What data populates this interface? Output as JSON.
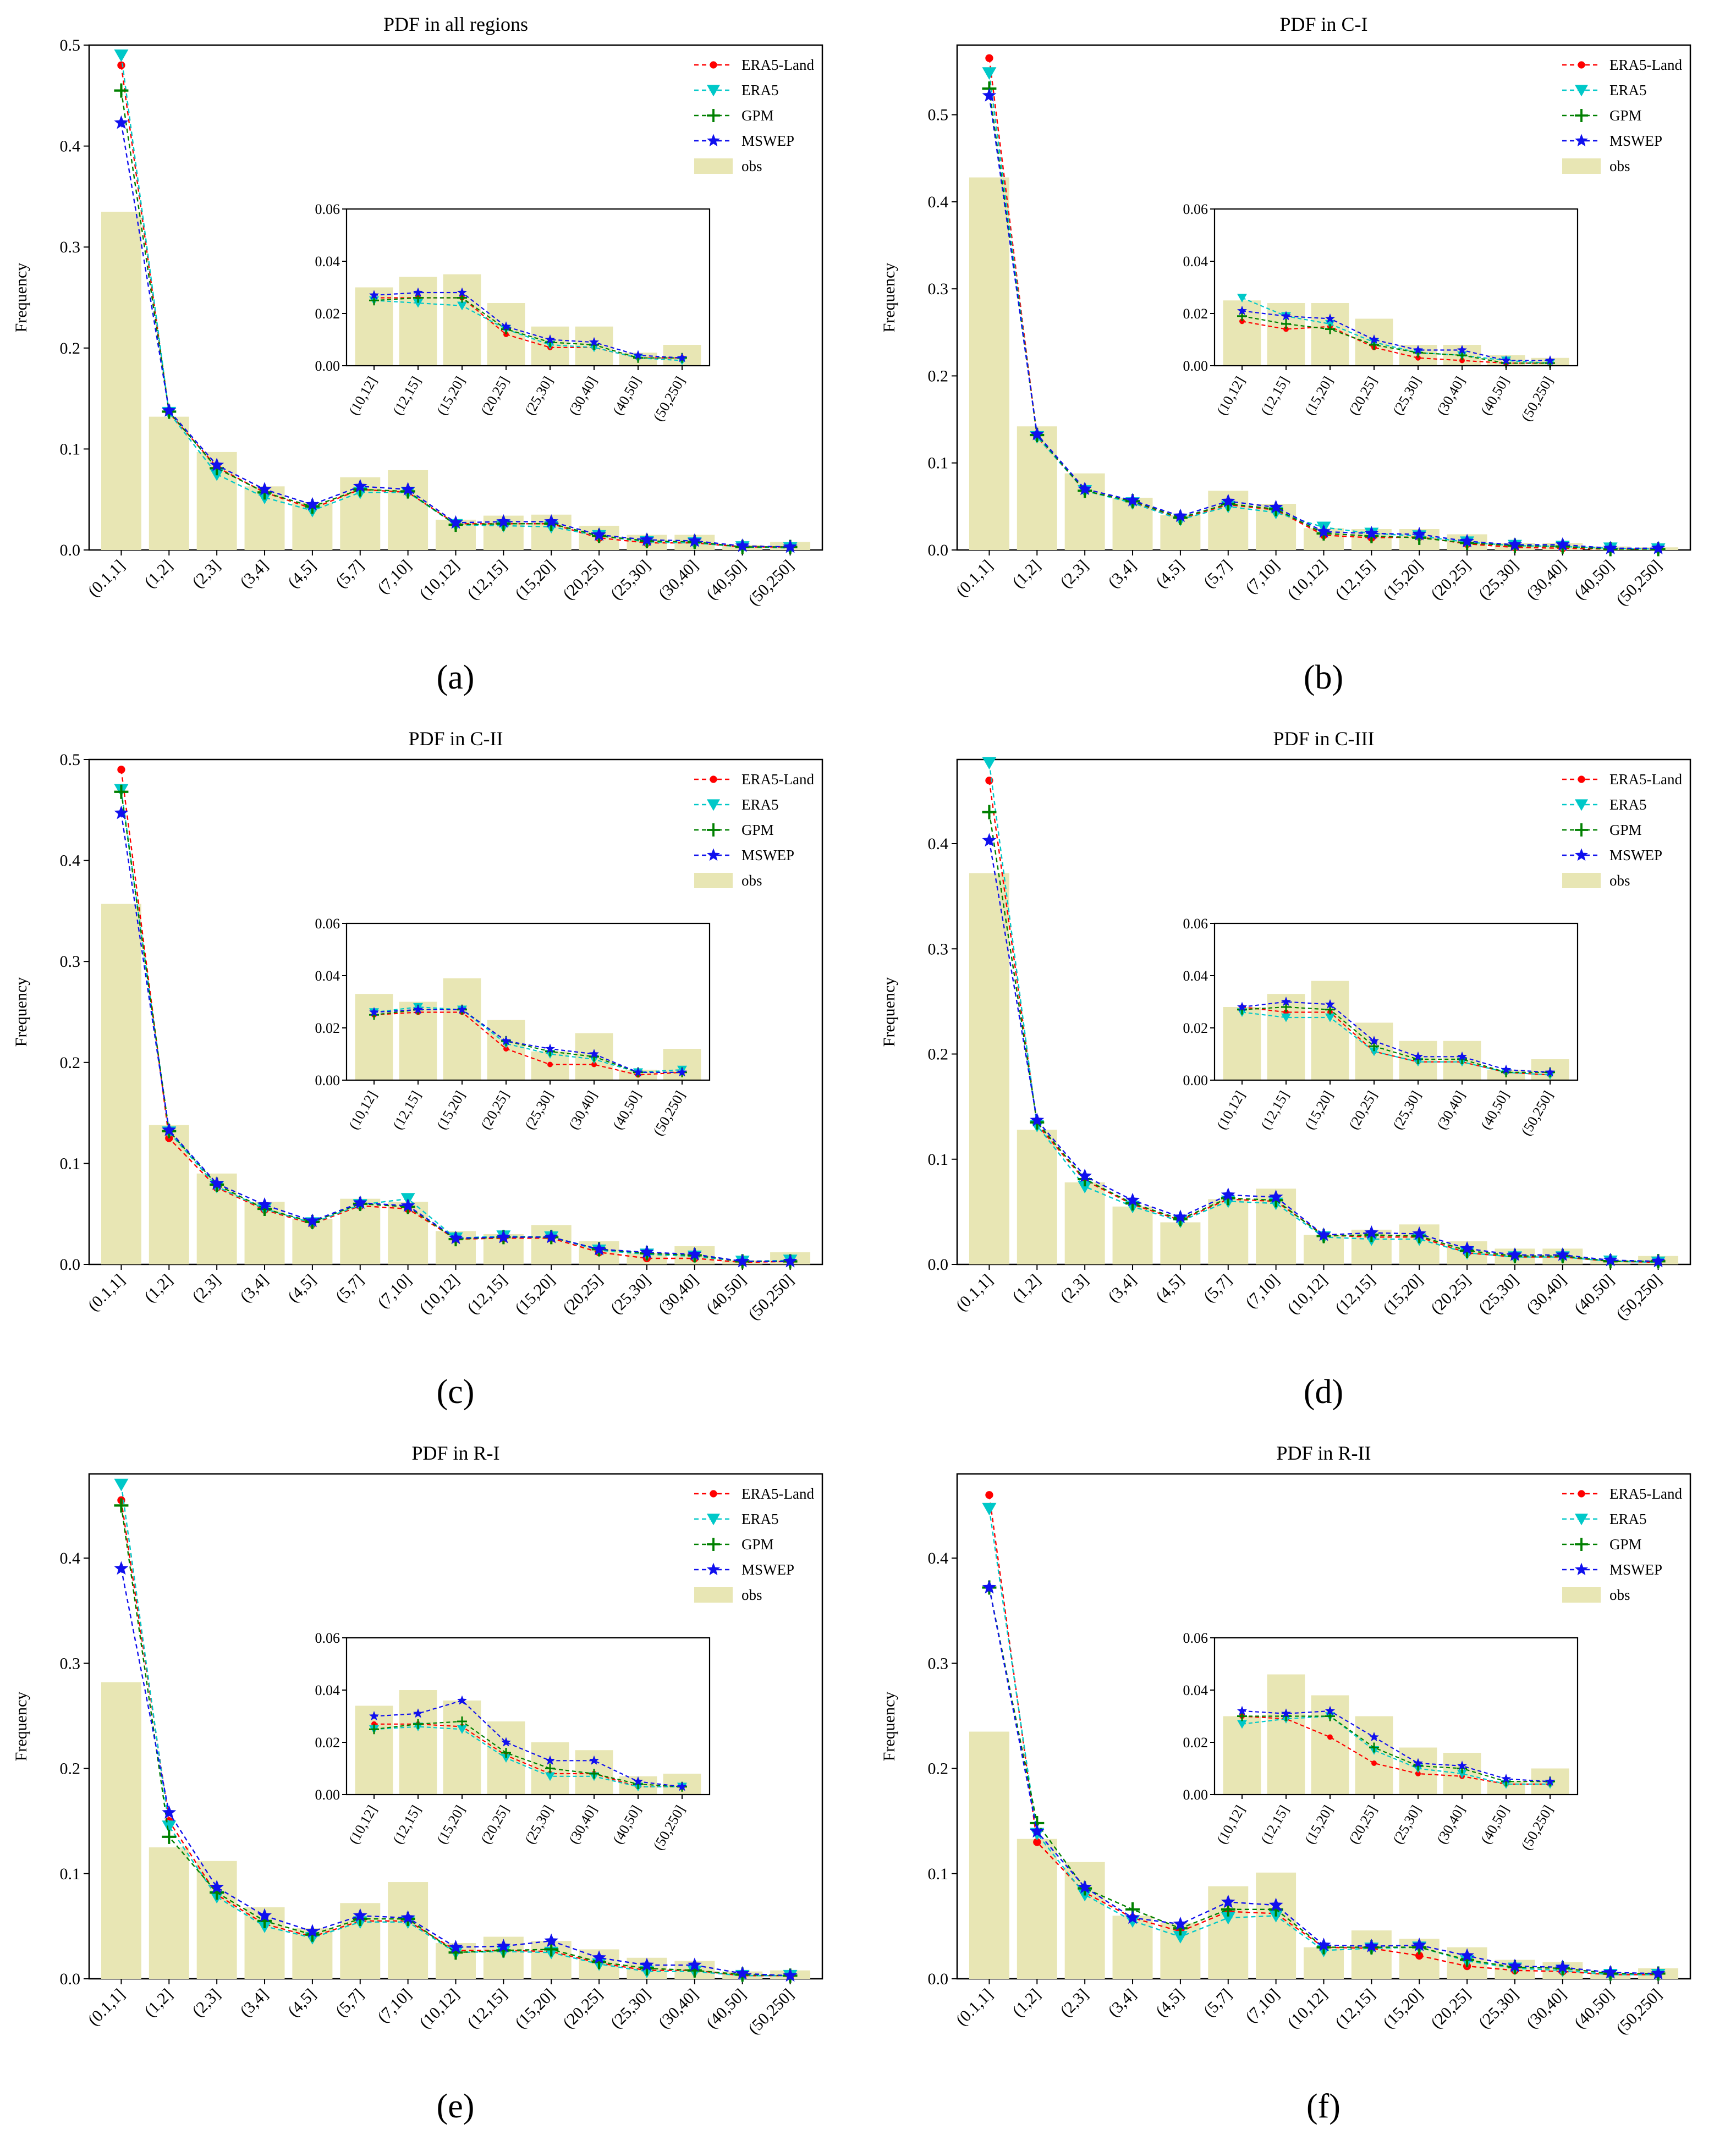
{
  "figure": {
    "categories": [
      "(0.1,1]",
      "(1,2]",
      "(2,3]",
      "(3,4]",
      "(4,5]",
      "(5,7]",
      "(7,10]",
      "(10,12]",
      "(12,15]",
      "(15,20]",
      "(20,25]",
      "(25,30]",
      "(30,40]",
      "(40,50]",
      "(50,250]"
    ],
    "inset_categories": [
      "(10,12]",
      "(12,15]",
      "(15,20]",
      "(20,25]",
      "(25,30]",
      "(30,40]",
      "(40,50]",
      "(50,250]"
    ],
    "ylabel": "Frequency",
    "legend": [
      "ERA5-Land",
      "ERA5",
      "GPM",
      "MSWEP",
      "obs"
    ],
    "colors": {
      "ERA5-Land": "#ff0000",
      "ERA5": "#00c8c8",
      "GPM": "#008000",
      "MSWEP": "#1010ee",
      "obs": "#e8e6b4"
    }
  },
  "chart_data": [
    {
      "type": "bar+line",
      "caption": "(a)",
      "title": "PDF in all regions",
      "ylim": [
        0,
        0.5
      ],
      "yticks": [
        0.0,
        0.1,
        0.2,
        0.3,
        0.4,
        0.5
      ],
      "inset_ylim": [
        0,
        0.06
      ],
      "inset_yticks": [
        0.0,
        0.02,
        0.04,
        0.06
      ],
      "obs": [
        0.335,
        0.132,
        0.097,
        0.063,
        0.047,
        0.072,
        0.079,
        0.03,
        0.034,
        0.035,
        0.024,
        0.015,
        0.015,
        0.005,
        0.008
      ],
      "series": [
        {
          "name": "ERA5-Land",
          "values": [
            0.48,
            0.136,
            0.082,
            0.057,
            0.041,
            0.06,
            0.057,
            0.026,
            0.026,
            0.026,
            0.012,
            0.007,
            0.007,
            0.003,
            0.003
          ]
        },
        {
          "name": "ERA5",
          "values": [
            0.49,
            0.136,
            0.075,
            0.052,
            0.039,
            0.057,
            0.057,
            0.025,
            0.024,
            0.023,
            0.014,
            0.008,
            0.007,
            0.003,
            0.002
          ]
        },
        {
          "name": "GPM",
          "values": [
            0.455,
            0.137,
            0.081,
            0.057,
            0.043,
            0.06,
            0.058,
            0.025,
            0.026,
            0.026,
            0.014,
            0.009,
            0.008,
            0.003,
            0.003
          ]
        },
        {
          "name": "MSWEP",
          "values": [
            0.423,
            0.138,
            0.084,
            0.06,
            0.045,
            0.063,
            0.06,
            0.027,
            0.028,
            0.028,
            0.015,
            0.01,
            0.009,
            0.004,
            0.003
          ]
        }
      ]
    },
    {
      "type": "bar+line",
      "caption": "(b)",
      "title": "PDF in C-I",
      "ylim": [
        0,
        0.58
      ],
      "yticks": [
        0.0,
        0.1,
        0.2,
        0.3,
        0.4,
        0.5
      ],
      "inset_ylim": [
        0,
        0.06
      ],
      "inset_yticks": [
        0.0,
        0.02,
        0.04,
        0.06
      ],
      "obs": [
        0.428,
        0.142,
        0.088,
        0.06,
        0.04,
        0.068,
        0.053,
        0.025,
        0.024,
        0.024,
        0.018,
        0.008,
        0.008,
        0.004,
        0.003
      ],
      "series": [
        {
          "name": "ERA5-Land",
          "values": [
            0.565,
            0.13,
            0.068,
            0.055,
            0.036,
            0.052,
            0.046,
            0.017,
            0.014,
            0.015,
            0.007,
            0.003,
            0.002,
            0.001,
            0.001
          ]
        },
        {
          "name": "ERA5",
          "values": [
            0.548,
            0.13,
            0.068,
            0.054,
            0.035,
            0.05,
            0.043,
            0.026,
            0.019,
            0.016,
            0.009,
            0.005,
            0.004,
            0.002,
            0.001
          ]
        },
        {
          "name": "GPM",
          "values": [
            0.53,
            0.132,
            0.068,
            0.056,
            0.037,
            0.053,
            0.047,
            0.019,
            0.016,
            0.014,
            0.008,
            0.005,
            0.004,
            0.001,
            0.001
          ]
        },
        {
          "name": "MSWEP",
          "values": [
            0.522,
            0.133,
            0.07,
            0.057,
            0.039,
            0.056,
            0.049,
            0.021,
            0.019,
            0.018,
            0.01,
            0.006,
            0.006,
            0.002,
            0.002
          ]
        }
      ]
    },
    {
      "type": "bar+line",
      "caption": "(c)",
      "title": "PDF in C-II",
      "ylim": [
        0,
        0.5
      ],
      "yticks": [
        0.0,
        0.1,
        0.2,
        0.3,
        0.4,
        0.5
      ],
      "inset_ylim": [
        0,
        0.06
      ],
      "inset_yticks": [
        0.0,
        0.02,
        0.04,
        0.06
      ],
      "obs": [
        0.357,
        0.138,
        0.09,
        0.062,
        0.045,
        0.065,
        0.062,
        0.033,
        0.03,
        0.039,
        0.023,
        0.011,
        0.018,
        0.004,
        0.012
      ],
      "series": [
        {
          "name": "ERA5-Land",
          "values": [
            0.49,
            0.125,
            0.076,
            0.054,
            0.04,
            0.058,
            0.055,
            0.025,
            0.026,
            0.026,
            0.012,
            0.006,
            0.006,
            0.002,
            0.003
          ]
        },
        {
          "name": "ERA5",
          "values": [
            0.47,
            0.131,
            0.077,
            0.055,
            0.041,
            0.059,
            0.065,
            0.026,
            0.028,
            0.027,
            0.014,
            0.01,
            0.008,
            0.003,
            0.004
          ]
        },
        {
          "name": "GPM",
          "values": [
            0.468,
            0.132,
            0.079,
            0.055,
            0.042,
            0.06,
            0.057,
            0.025,
            0.027,
            0.027,
            0.015,
            0.011,
            0.009,
            0.003,
            0.003
          ]
        },
        {
          "name": "MSWEP",
          "values": [
            0.447,
            0.133,
            0.08,
            0.059,
            0.043,
            0.061,
            0.058,
            0.026,
            0.027,
            0.027,
            0.015,
            0.012,
            0.01,
            0.003,
            0.003
          ]
        }
      ]
    },
    {
      "type": "bar+line",
      "caption": "(d)",
      "title": "PDF in C-III",
      "ylim": [
        0,
        0.48
      ],
      "yticks": [
        0.0,
        0.1,
        0.2,
        0.3,
        0.4
      ],
      "inset_ylim": [
        0,
        0.06
      ],
      "inset_yticks": [
        0.0,
        0.02,
        0.04,
        0.06
      ],
      "obs": [
        0.372,
        0.128,
        0.078,
        0.055,
        0.04,
        0.062,
        0.072,
        0.028,
        0.033,
        0.038,
        0.022,
        0.015,
        0.015,
        0.004,
        0.008
      ],
      "series": [
        {
          "name": "ERA5-Land",
          "values": [
            0.46,
            0.133,
            0.08,
            0.057,
            0.042,
            0.062,
            0.06,
            0.028,
            0.026,
            0.026,
            0.011,
            0.007,
            0.007,
            0.003,
            0.002
          ]
        },
        {
          "name": "ERA5",
          "values": [
            0.477,
            0.132,
            0.074,
            0.055,
            0.041,
            0.06,
            0.058,
            0.026,
            0.024,
            0.024,
            0.011,
            0.007,
            0.007,
            0.003,
            0.002
          ]
        },
        {
          "name": "GPM",
          "values": [
            0.43,
            0.135,
            0.081,
            0.058,
            0.043,
            0.063,
            0.061,
            0.027,
            0.028,
            0.027,
            0.013,
            0.008,
            0.008,
            0.003,
            0.003
          ]
        },
        {
          "name": "MSWEP",
          "values": [
            0.403,
            0.137,
            0.084,
            0.061,
            0.045,
            0.066,
            0.064,
            0.028,
            0.03,
            0.029,
            0.015,
            0.009,
            0.009,
            0.004,
            0.003
          ]
        }
      ]
    },
    {
      "type": "bar+line",
      "caption": "(e)",
      "title": "PDF in R-I",
      "ylim": [
        0,
        0.48
      ],
      "yticks": [
        0.0,
        0.1,
        0.2,
        0.3,
        0.4
      ],
      "inset_ylim": [
        0,
        0.06
      ],
      "inset_yticks": [
        0.0,
        0.02,
        0.04,
        0.06
      ],
      "obs": [
        0.282,
        0.125,
        0.112,
        0.068,
        0.048,
        0.072,
        0.092,
        0.034,
        0.04,
        0.036,
        0.028,
        0.02,
        0.017,
        0.007,
        0.008
      ],
      "series": [
        {
          "name": "ERA5-Land",
          "values": [
            0.455,
            0.15,
            0.08,
            0.052,
            0.04,
            0.055,
            0.055,
            0.027,
            0.027,
            0.026,
            0.015,
            0.008,
            0.008,
            0.003,
            0.003
          ]
        },
        {
          "name": "ERA5",
          "values": [
            0.47,
            0.145,
            0.078,
            0.05,
            0.039,
            0.054,
            0.054,
            0.025,
            0.026,
            0.025,
            0.014,
            0.007,
            0.007,
            0.003,
            0.003
          ]
        },
        {
          "name": "GPM",
          "values": [
            0.45,
            0.135,
            0.082,
            0.055,
            0.042,
            0.057,
            0.057,
            0.025,
            0.027,
            0.028,
            0.016,
            0.01,
            0.008,
            0.004,
            0.003
          ]
        },
        {
          "name": "MSWEP",
          "values": [
            0.39,
            0.158,
            0.087,
            0.06,
            0.045,
            0.06,
            0.058,
            0.03,
            0.031,
            0.036,
            0.02,
            0.013,
            0.013,
            0.005,
            0.003
          ]
        }
      ]
    },
    {
      "type": "bar+line",
      "caption": "(f)",
      "title": "PDF in R-II",
      "ylim": [
        0,
        0.48
      ],
      "yticks": [
        0.0,
        0.1,
        0.2,
        0.3,
        0.4
      ],
      "inset_ylim": [
        0,
        0.06
      ],
      "inset_yticks": [
        0.0,
        0.02,
        0.04,
        0.06
      ],
      "obs": [
        0.235,
        0.133,
        0.111,
        0.06,
        0.053,
        0.088,
        0.101,
        0.03,
        0.046,
        0.038,
        0.03,
        0.018,
        0.016,
        0.005,
        0.01
      ],
      "series": [
        {
          "name": "ERA5-Land",
          "values": [
            0.46,
            0.13,
            0.082,
            0.058,
            0.045,
            0.064,
            0.062,
            0.03,
            0.029,
            0.022,
            0.012,
            0.008,
            0.007,
            0.004,
            0.004
          ]
        },
        {
          "name": "ERA5",
          "values": [
            0.447,
            0.138,
            0.08,
            0.055,
            0.04,
            0.058,
            0.06,
            0.027,
            0.029,
            0.03,
            0.017,
            0.01,
            0.008,
            0.004,
            0.004
          ]
        },
        {
          "name": "GPM",
          "values": [
            0.372,
            0.148,
            0.086,
            0.066,
            0.048,
            0.066,
            0.066,
            0.03,
            0.03,
            0.03,
            0.018,
            0.011,
            0.01,
            0.005,
            0.005
          ]
        },
        {
          "name": "MSWEP",
          "values": [
            0.372,
            0.14,
            0.087,
            0.058,
            0.052,
            0.073,
            0.07,
            0.032,
            0.031,
            0.032,
            0.022,
            0.012,
            0.011,
            0.006,
            0.005
          ]
        }
      ]
    }
  ]
}
